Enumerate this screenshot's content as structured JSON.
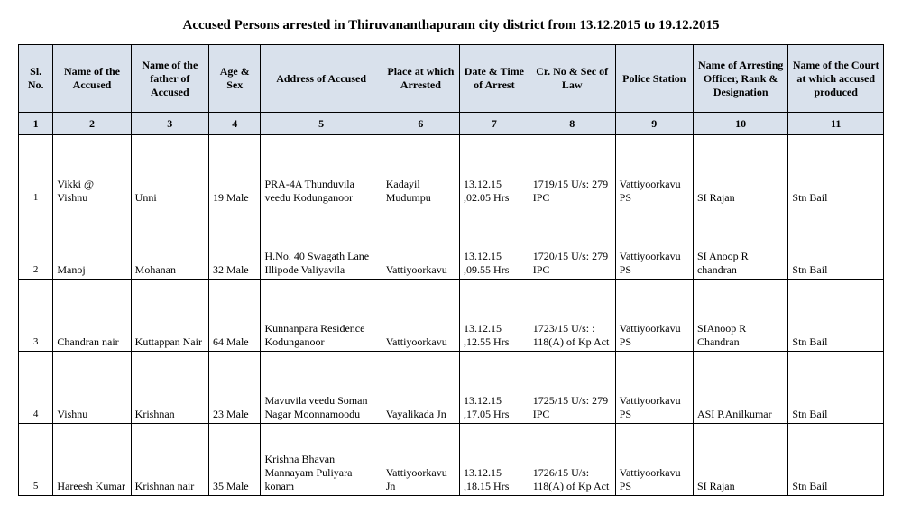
{
  "title": "Accused Persons arrested in   Thiruvananthapuram city   district from   13.12.2015 to 19.12.2015",
  "colors": {
    "header_bg": "#d9e1ec",
    "border": "#000000",
    "text": "#000000",
    "page_bg": "#ffffff"
  },
  "typography": {
    "title_fontsize": 15,
    "cell_fontsize": 12,
    "font_family": "Times New Roman"
  },
  "columns": [
    "Sl. No.",
    "Name of the Accused",
    "Name of the father of Accused",
    "Age & Sex",
    "Address of Accused",
    "Place at which Arrested",
    "Date & Time of Arrest",
    "Cr. No & Sec of Law",
    "Police Station",
    "Name of Arresting Officer, Rank & Designation",
    "Name of the Court at which accused produced"
  ],
  "colnums": [
    "1",
    "2",
    "3",
    "4",
    "5",
    "6",
    "7",
    "8",
    "9",
    "10",
    "11"
  ],
  "rows": [
    {
      "sl": "1",
      "name": "Vikki @ Vishnu",
      "father": "Unni",
      "agesex": "19 Male",
      "address": "PRA-4A Thunduvila veedu Kodunganoor",
      "place": "Kadayil Mudumpu",
      "datetime": "13.12.15 ,02.05 Hrs",
      "crno": "1719/15 U/s: 279 IPC",
      "station": "Vattiyoorkavu PS",
      "officer": "SI Rajan",
      "court": "Stn Bail"
    },
    {
      "sl": "2",
      "name": "Manoj",
      "father": "Mohanan",
      "agesex": "32 Male",
      "address": "H.No. 40 Swagath Lane Illipode Valiyavila",
      "place": "Vattiyoorkavu",
      "datetime": "13.12.15 ,09.55 Hrs",
      "crno": "1720/15 U/s: 279 IPC",
      "station": "Vattiyoorkavu PS",
      "officer": "SI Anoop R chandran",
      "court": "Stn Bail"
    },
    {
      "sl": "3",
      "name": "Chandran nair",
      "father": "Kuttappan Nair",
      "agesex": "64 Male",
      "address": "Kunnanpara Residence Kodunganoor",
      "place": "Vattiyoorkavu",
      "datetime": "13.12.15 ,12.55 Hrs",
      "crno": "1723/15 U/s: : 118(A) of Kp Act",
      "station": "Vattiyoorkavu PS",
      "officer": " SIAnoop R Chandran",
      "court": "Stn Bail"
    },
    {
      "sl": "4",
      "name": "Vishnu",
      "father": "Krishnan",
      "agesex": "23 Male",
      "address": "Mavuvila veedu Soman Nagar Moonnamoodu",
      "place": "Vayalikada Jn",
      "datetime": "13.12.15 ,17.05 Hrs",
      "crno": "1725/15 U/s: 279 IPC",
      "station": "Vattiyoorkavu PS",
      "officer": "ASI P.Anilkumar",
      "court": "Stn Bail"
    },
    {
      "sl": "5",
      "name": "Hareesh Kumar",
      "father": "Krishnan nair",
      "agesex": "35 Male",
      "address": "Krishna Bhavan Mannayam Puliyara konam",
      "place": "Vattiyoorkavu Jn",
      "datetime": "13.12.15 ,18.15 Hrs",
      "crno": "1726/15 U/s:  118(A) of Kp Act",
      "station": "Vattiyoorkavu PS",
      "officer": "SI Rajan",
      "court": "Stn Bail"
    }
  ]
}
